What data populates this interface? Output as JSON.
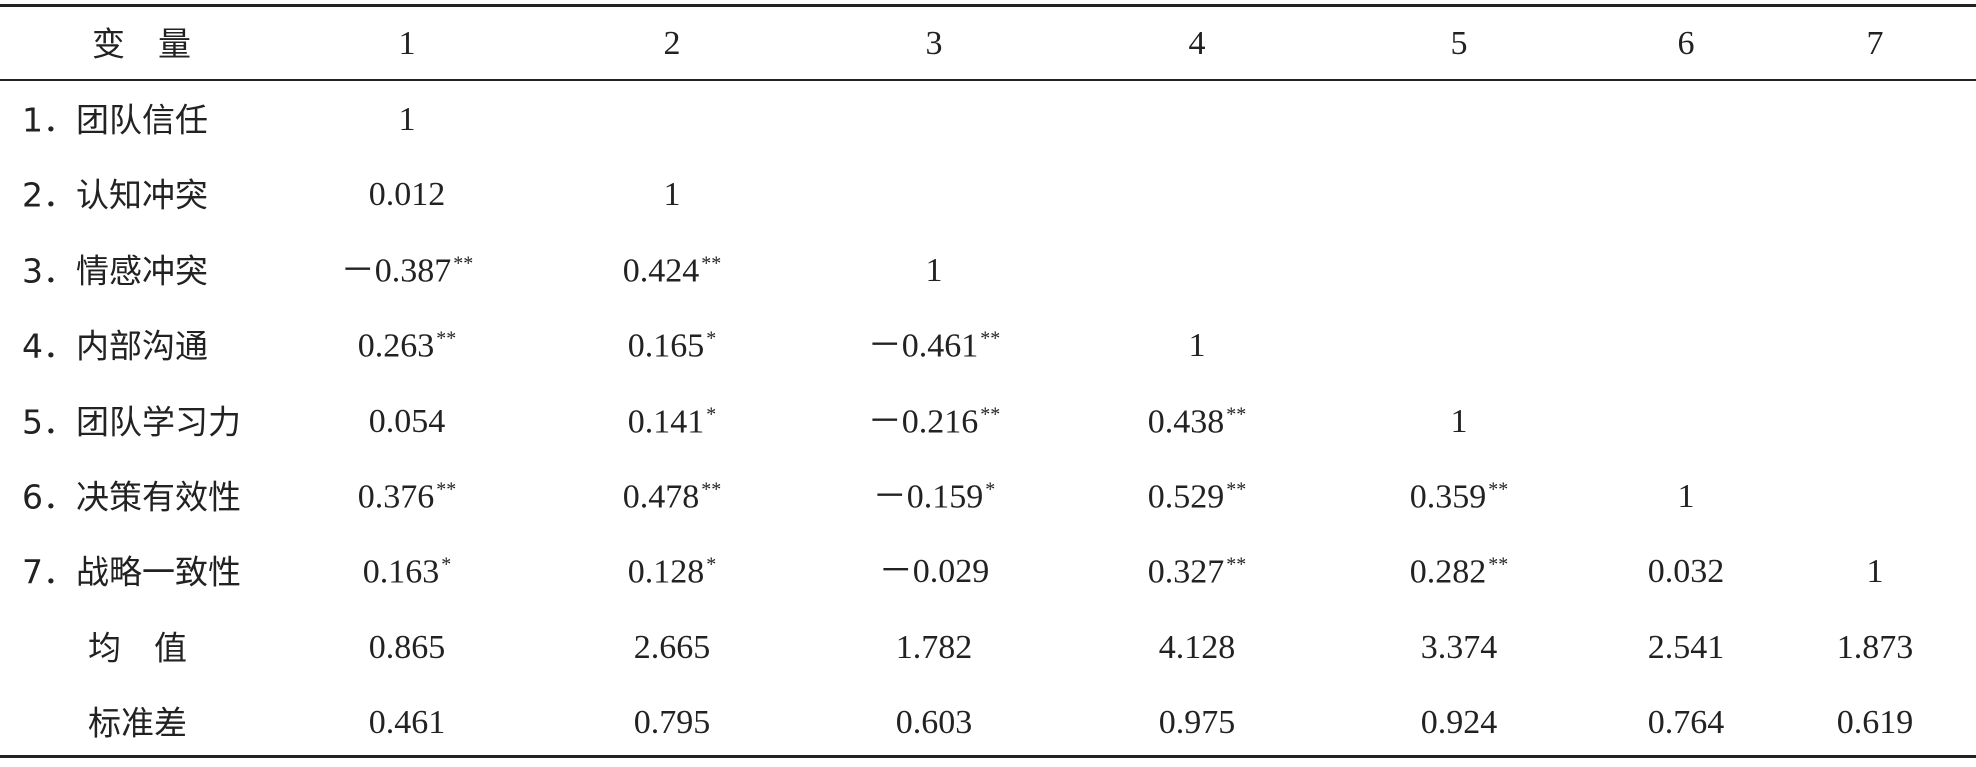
{
  "table": {
    "header": [
      "变　量",
      "1",
      "2",
      "3",
      "4",
      "5",
      "6",
      "7"
    ],
    "rows": [
      {
        "label": "1．团队信任",
        "cells": [
          {
            "text": "1"
          }
        ]
      },
      {
        "label": "2．认知冲突",
        "cells": [
          {
            "text": "0.012"
          },
          {
            "text": "1"
          }
        ]
      },
      {
        "label": "3．情感冲突",
        "cells": [
          {
            "text": "－0.387",
            "sig": "**"
          },
          {
            "text": "0.424",
            "sig": "**"
          },
          {
            "text": "1"
          }
        ]
      },
      {
        "label": "4．内部沟通",
        "cells": [
          {
            "text": "0.263",
            "sig": "**"
          },
          {
            "text": "0.165",
            "sig": "*"
          },
          {
            "text": "－0.461",
            "sig": "**"
          },
          {
            "text": "1"
          }
        ]
      },
      {
        "label": "5．团队学习力",
        "cells": [
          {
            "text": "0.054"
          },
          {
            "text": "0.141",
            "sig": "*"
          },
          {
            "text": "－0.216",
            "sig": "**"
          },
          {
            "text": "0.438",
            "sig": "**"
          },
          {
            "text": "1"
          }
        ]
      },
      {
        "label": "6．决策有效性",
        "cells": [
          {
            "text": "0.376",
            "sig": "**"
          },
          {
            "text": "0.478",
            "sig": "**"
          },
          {
            "text": "－0.159",
            "sig": "*"
          },
          {
            "text": "0.529",
            "sig": "**"
          },
          {
            "text": "0.359",
            "sig": "**"
          },
          {
            "text": "1"
          }
        ]
      },
      {
        "label": "7．战略一致性",
        "cells": [
          {
            "text": "0.163",
            "sig": "*"
          },
          {
            "text": "0.128",
            "sig": "*"
          },
          {
            "text": "－0.029"
          },
          {
            "text": "0.327",
            "sig": "**"
          },
          {
            "text": "0.282",
            "sig": "**"
          },
          {
            "text": "0.032"
          },
          {
            "text": "1"
          }
        ]
      },
      {
        "label": "均　值",
        "cells": [
          {
            "text": "0.865"
          },
          {
            "text": "2.665"
          },
          {
            "text": "1.782"
          },
          {
            "text": "4.128"
          },
          {
            "text": "3.374"
          },
          {
            "text": "2.541"
          },
          {
            "text": "1.873"
          }
        ]
      },
      {
        "label": "标准差",
        "cells": [
          {
            "text": "0.461"
          },
          {
            "text": "0.795"
          },
          {
            "text": "0.603"
          },
          {
            "text": "0.975"
          },
          {
            "text": "0.924"
          },
          {
            "text": "0.764"
          },
          {
            "text": "0.619"
          }
        ]
      }
    ]
  }
}
